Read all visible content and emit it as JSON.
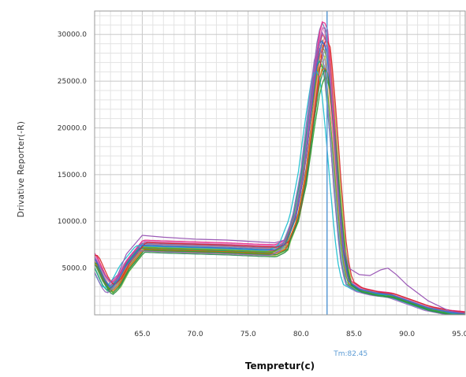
{
  "chart_data": {
    "type": "line",
    "title": "",
    "xlabel": "Tempretur(c)",
    "ylabel": "Drivative Reporter(-R)",
    "xlim": [
      60.5,
      95.5
    ],
    "ylim": [
      0,
      32500
    ],
    "grid": true,
    "x_ticks": [
      65,
      70,
      75,
      80,
      85,
      90,
      95
    ],
    "x_tick_labels": [
      "65.0",
      "70.0",
      "75.0",
      "80.0",
      "85.0",
      "90.0",
      "95.0"
    ],
    "y_ticks": [
      5000,
      10000,
      15000,
      20000,
      25000,
      30000
    ],
    "y_tick_labels": [
      "5000.0",
      "10000.0",
      "15000.0",
      "20000.0",
      "25000.0",
      "30000.0"
    ],
    "marker": {
      "x": 82.45,
      "label": "Tm:82.45",
      "color": "#5b9bd5"
    },
    "curve_model": {
      "x_start": 60.5,
      "x_end": 95.5,
      "x_step": 0.25,
      "profile": [
        [
          60.5,
          6000
        ],
        [
          61.5,
          3500
        ],
        [
          62.0,
          2800
        ],
        [
          62.7,
          3600
        ],
        [
          63.5,
          5300
        ],
        [
          65.0,
          7400
        ],
        [
          67.0,
          7300
        ],
        [
          70.0,
          7200
        ],
        [
          73.0,
          7100
        ],
        [
          76.0,
          6950
        ],
        [
          77.5,
          6900
        ],
        [
          78.5,
          7500
        ],
        [
          79.5,
          10500
        ],
        [
          80.3,
          15500
        ],
        [
          81.0,
          22500
        ],
        [
          81.6,
          28000
        ],
        [
          82.0,
          29600
        ],
        [
          82.45,
          28500
        ],
        [
          83.0,
          21000
        ],
        [
          83.5,
          13000
        ],
        [
          84.0,
          6500
        ],
        [
          84.5,
          3500
        ],
        [
          85.5,
          2700
        ],
        [
          87.0,
          2300
        ],
        [
          88.5,
          2100
        ],
        [
          90.0,
          1500
        ],
        [
          92.0,
          700
        ],
        [
          94.0,
          250
        ],
        [
          95.5,
          100
        ]
      ]
    },
    "series": [
      {
        "color": "#e41a1c",
        "scale": 1.02,
        "shift": 0.05,
        "base": 0
      },
      {
        "color": "#377eb8",
        "scale": 1.0,
        "shift": -0.1,
        "base": 150
      },
      {
        "color": "#4daf4a",
        "scale": 0.97,
        "shift": 0.0,
        "base": -300
      },
      {
        "color": "#984ea3",
        "scale": 1.05,
        "shift": 0.1,
        "base": 400
      },
      {
        "color": "#ff7f00",
        "scale": 0.95,
        "shift": -0.05,
        "base": -200
      },
      {
        "color": "#a65628",
        "scale": 0.99,
        "shift": 0.15,
        "base": -500
      },
      {
        "color": "#f781bf",
        "scale": 1.03,
        "shift": -0.15,
        "base": 300
      },
      {
        "color": "#999999",
        "scale": 0.96,
        "shift": 0.2,
        "base": -100
      },
      {
        "color": "#66c2a5",
        "scale": 0.93,
        "shift": -0.2,
        "base": -400
      },
      {
        "color": "#fc8d62",
        "scale": 1.01,
        "shift": 0.25,
        "base": 200
      },
      {
        "color": "#8da0cb",
        "scale": 0.98,
        "shift": -0.25,
        "base": 100
      },
      {
        "color": "#e78ac3",
        "scale": 1.04,
        "shift": 0.0,
        "base": 500
      },
      {
        "color": "#a6d854",
        "scale": 0.94,
        "shift": 0.3,
        "base": -600
      },
      {
        "color": "#1b9e77",
        "scale": 0.92,
        "shift": -0.3,
        "base": -250
      },
      {
        "color": "#d95f02",
        "scale": 0.9,
        "shift": 0.12,
        "base": -350
      },
      {
        "color": "#7570b3",
        "scale": 1.06,
        "shift": -0.05,
        "base": 250
      },
      {
        "color": "#e7298a",
        "scale": 1.07,
        "shift": 0.08,
        "base": 600
      },
      {
        "color": "#66a61e",
        "scale": 0.91,
        "shift": -0.12,
        "base": -150
      },
      {
        "color": "#17becf",
        "scale": 0.88,
        "shift": -0.6,
        "base": 0
      },
      {
        "color": "#2ca02c",
        "scale": 0.86,
        "shift": 0.22,
        "base": -450
      },
      {
        "color": "#d62728",
        "scale": 1.0,
        "shift": 0.35,
        "base": 350
      },
      {
        "color": "#9467bd",
        "scale": 0.97,
        "shift": -0.35,
        "base": -550
      },
      {
        "color": "#3366cc",
        "scale": 0.99,
        "shift": 0.02,
        "base": 50
      },
      {
        "color": "#2e8b57",
        "scale": 0.89,
        "shift": 0.18,
        "base": -700
      }
    ],
    "extra_series": [
      {
        "color": "#9b59b6",
        "points": [
          [
            60.5,
            6200
          ],
          [
            61.5,
            4200
          ],
          [
            62.0,
            3500
          ],
          [
            62.7,
            4300
          ],
          [
            63.5,
            6500
          ],
          [
            65.0,
            8500
          ],
          [
            67.0,
            8300
          ],
          [
            70.0,
            8100
          ],
          [
            73.0,
            8000
          ],
          [
            76.0,
            7800
          ],
          [
            77.5,
            7700
          ],
          [
            78.5,
            8000
          ],
          [
            79.5,
            10800
          ],
          [
            80.3,
            15500
          ],
          [
            81.0,
            22800
          ],
          [
            81.6,
            28500
          ],
          [
            82.0,
            30200
          ],
          [
            82.45,
            29000
          ],
          [
            83.0,
            21500
          ],
          [
            83.5,
            13500
          ],
          [
            84.0,
            7500
          ],
          [
            84.5,
            5000
          ],
          [
            85.5,
            4300
          ],
          [
            86.5,
            4200
          ],
          [
            87.5,
            4800
          ],
          [
            88.2,
            5000
          ],
          [
            89.0,
            4300
          ],
          [
            90.0,
            3200
          ],
          [
            92.0,
            1500
          ],
          [
            94.0,
            400
          ],
          [
            95.5,
            150
          ]
        ]
      }
    ]
  }
}
